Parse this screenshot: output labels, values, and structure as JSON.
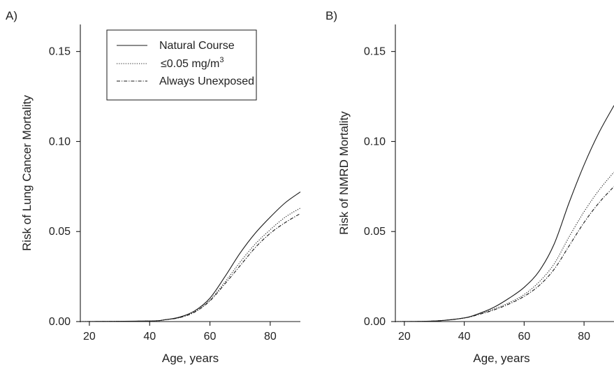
{
  "chart_data": [
    {
      "type": "line",
      "panel_label": "A)",
      "xlabel": "Age, years",
      "ylabel": "Risk of Lung Cancer Mortality",
      "xlim": [
        17,
        90
      ],
      "ylim": [
        0,
        0.165
      ],
      "xticks": [
        20,
        40,
        60,
        80
      ],
      "yticks": [
        "0.00",
        "0.05",
        "0.10",
        "0.15"
      ],
      "legend": {
        "position": "top-center",
        "entries": [
          {
            "label": "Natural Course",
            "style": "solid"
          },
          {
            "label": "≤0.05 mg/m",
            "sup": "3",
            "style": "dotted"
          },
          {
            "label": "Always Unexposed",
            "style": "dashdot"
          }
        ]
      },
      "x": [
        17,
        40,
        45,
        50,
        55,
        60,
        65,
        70,
        75,
        80,
        85,
        90
      ],
      "series": [
        {
          "name": "Natural Course",
          "style": "solid",
          "values": [
            0,
            0.0003,
            0.001,
            0.0025,
            0.006,
            0.013,
            0.025,
            0.038,
            0.049,
            0.058,
            0.066,
            0.072
          ]
        },
        {
          "name": "≤0.05 mg/m3",
          "style": "dotted",
          "values": [
            0,
            0.0003,
            0.001,
            0.0023,
            0.0055,
            0.012,
            0.022,
            0.033,
            0.043,
            0.051,
            0.058,
            0.063
          ]
        },
        {
          "name": "Always Unexposed",
          "style": "dashdot",
          "values": [
            0,
            0.0003,
            0.001,
            0.0022,
            0.0053,
            0.0115,
            0.021,
            0.031,
            0.041,
            0.049,
            0.055,
            0.06
          ]
        }
      ]
    },
    {
      "type": "line",
      "panel_label": "B)",
      "xlabel": "Age, years",
      "ylabel": "Risk of NMRD Mortality",
      "xlim": [
        17,
        90
      ],
      "ylim": [
        0,
        0.165
      ],
      "xticks": [
        20,
        40,
        60,
        80
      ],
      "yticks": [
        "0.00",
        "0.05",
        "0.10",
        "0.15"
      ],
      "x": [
        17,
        30,
        40,
        45,
        50,
        55,
        60,
        65,
        70,
        75,
        80,
        85,
        90
      ],
      "series": [
        {
          "name": "Natural Course",
          "style": "solid",
          "values": [
            0,
            0.0003,
            0.002,
            0.0045,
            0.008,
            0.013,
            0.019,
            0.028,
            0.043,
            0.066,
            0.087,
            0.105,
            0.12
          ]
        },
        {
          "name": "≤0.05 mg/m3",
          "style": "dotted",
          "values": [
            0,
            0.0003,
            0.002,
            0.0042,
            0.007,
            0.0105,
            0.015,
            0.022,
            0.032,
            0.047,
            0.061,
            0.073,
            0.083
          ]
        },
        {
          "name": "Always Unexposed",
          "style": "dashdot",
          "values": [
            0,
            0.0003,
            0.002,
            0.004,
            0.0065,
            0.0098,
            0.014,
            0.02,
            0.029,
            0.042,
            0.055,
            0.066,
            0.075
          ]
        }
      ]
    }
  ],
  "colors": {
    "line": "#1a1a1a",
    "axis": "#1a1a1a",
    "background": "#ffffff"
  }
}
